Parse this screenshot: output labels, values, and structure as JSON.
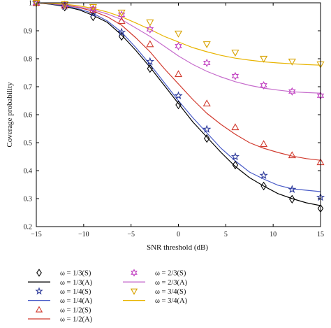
{
  "chart_data": {
    "type": "line",
    "xlabel": "SNR threshold (dB)",
    "ylabel": "Coverage probability",
    "xlim": [
      -15,
      15
    ],
    "ylim": [
      0.2,
      1.0
    ],
    "xticks": [
      -15,
      -10,
      -5,
      0,
      5,
      10,
      15
    ],
    "xtick_labels": [
      "−15",
      "−10",
      "−5",
      "0",
      "5",
      "10",
      "15"
    ],
    "yticks": [
      0.2,
      0.3,
      0.4,
      0.5,
      0.6,
      0.7,
      0.8,
      0.9,
      1.0
    ],
    "ytick_labels": [
      "0.2",
      "0.3",
      "0.4",
      "0.5",
      "0.6",
      "0.7",
      "0.8",
      "0.9",
      "1"
    ],
    "grid": false,
    "legend_position": "bottom",
    "series": [
      {
        "name": "ω = 1/3(S)",
        "kind": "markers",
        "marker": "diamond",
        "color": "#000000",
        "x": [
          -15,
          -12,
          -9,
          -6,
          -3,
          0,
          3,
          6,
          9,
          12,
          15
        ],
        "y": [
          1.0,
          0.985,
          0.95,
          0.88,
          0.765,
          0.635,
          0.515,
          0.42,
          0.345,
          0.298,
          0.265
        ]
      },
      {
        "name": "ω = 1/3(A)",
        "kind": "line",
        "color": "#000000",
        "x": [
          -15,
          -13.5,
          -12,
          -10.5,
          -9,
          -7.5,
          -6,
          -4.5,
          -3,
          -1.5,
          0,
          1.5,
          3,
          4.5,
          6,
          7.5,
          9,
          10.5,
          12,
          13.5,
          15
        ],
        "y": [
          1.0,
          0.995,
          0.987,
          0.975,
          0.955,
          0.93,
          0.885,
          0.83,
          0.77,
          0.705,
          0.64,
          0.575,
          0.52,
          0.465,
          0.415,
          0.375,
          0.345,
          0.318,
          0.3,
          0.285,
          0.275
        ]
      },
      {
        "name": "ω = 1/4(S)",
        "kind": "markers",
        "marker": "star",
        "color": "#2d3a9a",
        "x": [
          -15,
          -12,
          -9,
          -6,
          -3,
          0,
          3,
          6,
          9,
          12,
          15
        ],
        "y": [
          1.0,
          0.988,
          0.962,
          0.895,
          0.79,
          0.668,
          0.548,
          0.45,
          0.383,
          0.333,
          0.305
        ]
      },
      {
        "name": "ω = 1/4(A)",
        "kind": "line",
        "color": "#4a5cc8",
        "x": [
          -15,
          -13.5,
          -12,
          -10.5,
          -9,
          -7.5,
          -6,
          -4.5,
          -3,
          -1.5,
          0,
          1.5,
          3,
          4.5,
          6,
          7.5,
          9,
          10.5,
          12,
          13.5,
          15
        ],
        "y": [
          1.0,
          0.996,
          0.99,
          0.978,
          0.962,
          0.935,
          0.895,
          0.84,
          0.78,
          0.715,
          0.65,
          0.59,
          0.535,
          0.48,
          0.435,
          0.395,
          0.37,
          0.348,
          0.335,
          0.33,
          0.325
        ]
      },
      {
        "name": "ω = 1/2(S)",
        "kind": "markers",
        "marker": "triangle-up",
        "color": "#d13a2e",
        "x": [
          -15,
          -12,
          -9,
          -6,
          -3,
          0,
          3,
          6,
          9,
          12,
          15
        ],
        "y": [
          1.0,
          0.99,
          0.975,
          0.935,
          0.852,
          0.745,
          0.64,
          0.555,
          0.495,
          0.455,
          0.43
        ]
      },
      {
        "name": "ω = 1/2(A)",
        "kind": "line",
        "color": "#d13a2e",
        "x": [
          -15,
          -13.5,
          -12,
          -10.5,
          -9,
          -7.5,
          -6,
          -4.5,
          -3,
          -1.5,
          0,
          1.5,
          3,
          4.5,
          6,
          7.5,
          9,
          10.5,
          12,
          13.5,
          15
        ],
        "y": [
          1.0,
          0.997,
          0.992,
          0.983,
          0.97,
          0.95,
          0.92,
          0.875,
          0.825,
          0.765,
          0.71,
          0.655,
          0.605,
          0.565,
          0.53,
          0.5,
          0.48,
          0.465,
          0.452,
          0.443,
          0.437
        ]
      },
      {
        "name": "ω = 2/3(S)",
        "kind": "markers",
        "marker": "hexagram",
        "color": "#c03cc0",
        "x": [
          -15,
          -12,
          -9,
          -6,
          -3,
          0,
          3,
          6,
          9,
          12,
          15
        ],
        "y": [
          1.0,
          0.993,
          0.978,
          0.957,
          0.905,
          0.845,
          0.785,
          0.738,
          0.705,
          0.683,
          0.668
        ]
      },
      {
        "name": "ω = 2/3(A)",
        "kind": "line",
        "color": "#c66ccc",
        "x": [
          -15,
          -13.5,
          -12,
          -10.5,
          -9,
          -7.5,
          -6,
          -4.5,
          -3,
          -1.5,
          0,
          1.5,
          3,
          4.5,
          6,
          7.5,
          9,
          10.5,
          12,
          13.5,
          15
        ],
        "y": [
          1.0,
          0.997,
          0.993,
          0.985,
          0.975,
          0.96,
          0.94,
          0.91,
          0.88,
          0.845,
          0.81,
          0.78,
          0.755,
          0.735,
          0.718,
          0.705,
          0.695,
          0.688,
          0.682,
          0.679,
          0.677
        ]
      },
      {
        "name": "ω = 3/4(S)",
        "kind": "markers",
        "marker": "triangle-down",
        "color": "#d8a300",
        "x": [
          -15,
          -12,
          -9,
          -6,
          -3,
          0,
          3,
          6,
          9,
          12,
          15
        ],
        "y": [
          1.0,
          0.995,
          0.985,
          0.965,
          0.93,
          0.89,
          0.852,
          0.822,
          0.8,
          0.79,
          0.78
        ]
      },
      {
        "name": "ω = 3/4(A)",
        "kind": "line",
        "color": "#e8b400",
        "x": [
          -15,
          -13.5,
          -12,
          -10.5,
          -9,
          -7.5,
          -6,
          -4.5,
          -3,
          -1.5,
          0,
          1.5,
          3,
          4.5,
          6,
          7.5,
          9,
          10.5,
          12,
          13.5,
          15
        ],
        "y": [
          1.0,
          0.998,
          0.995,
          0.989,
          0.98,
          0.967,
          0.95,
          0.928,
          0.905,
          0.88,
          0.86,
          0.84,
          0.825,
          0.812,
          0.802,
          0.795,
          0.789,
          0.785,
          0.782,
          0.779,
          0.777
        ]
      }
    ]
  }
}
